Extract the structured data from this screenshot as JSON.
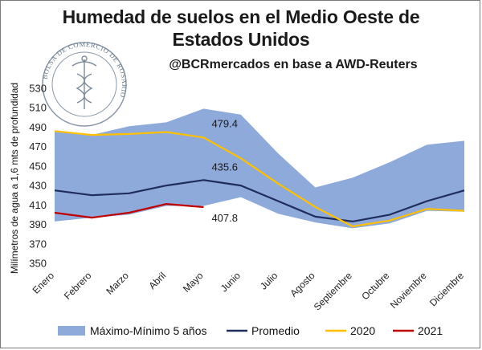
{
  "header": {
    "title_line1": "Humedad de suelos en el Medio Oeste de",
    "title_line2": "Estados Unidos",
    "subtitle": "@BCRmercados en base a AWD-Reuters"
  },
  "logo": {
    "text": "BOLSA DE COMERCIO DE ROSARIO"
  },
  "chart_data": {
    "type": "line",
    "title": "Humedad de suelos en el Medio Oeste de Estados Unidos",
    "subtitle": "@BCRmercados en base a AWD-Reuters",
    "ylabel": "Milímetros de agua a 1,6 mts de profundidad",
    "xlabel": "",
    "categories": [
      "Enero",
      "Febrero",
      "Marzo",
      "Abril",
      "Mayo",
      "Junio",
      "Julio",
      "Agosto",
      "Septiembre",
      "Octubre",
      "Noviembre",
      "Diciembre"
    ],
    "ylim": [
      350,
      530
    ],
    "yticks": [
      350,
      370,
      390,
      410,
      430,
      450,
      470,
      490,
      510,
      530
    ],
    "grid": false,
    "legend_position": "bottom",
    "band": {
      "name": "Máximo-Mínimo 5 años",
      "color": "#8eaadb",
      "max": [
        486,
        482,
        491,
        495,
        509,
        503,
        463,
        428,
        438,
        454,
        472,
        476
      ],
      "min": [
        393,
        397,
        400,
        409,
        409,
        418,
        401,
        392,
        386,
        391,
        404,
        403
      ]
    },
    "series": [
      {
        "name": "Promedio",
        "color": "#1f2d5c",
        "values": [
          425,
          420,
          422,
          430,
          435.6,
          430,
          414,
          398,
          393,
          400,
          414,
          425
        ]
      },
      {
        "name": "2020",
        "color": "#ffc000",
        "values": [
          486,
          482,
          483,
          485,
          479.4,
          458,
          432,
          408,
          388,
          394,
          406,
          404
        ]
      },
      {
        "name": "2021",
        "color": "#c00000",
        "values": [
          402,
          397,
          402,
          411,
          407.8,
          null,
          null,
          null,
          null,
          null,
          null,
          null
        ]
      }
    ],
    "annotations": [
      {
        "text": "479.4",
        "series": "2020",
        "index": 4
      },
      {
        "text": "435.6",
        "series": "Promedio",
        "index": 4
      },
      {
        "text": "407.8",
        "series": "2021",
        "index": 4
      }
    ]
  }
}
